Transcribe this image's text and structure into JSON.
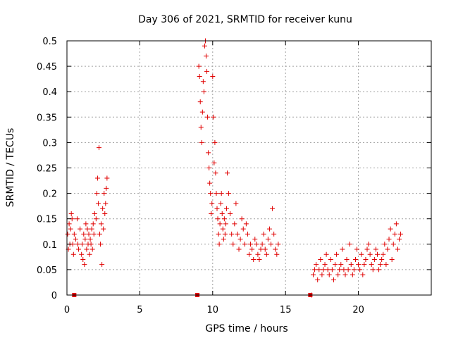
{
  "chart_data": {
    "type": "scatter",
    "title": "Day 306 of 2021, SRMTID for receiver kunu",
    "xlabel": "GPS time / hours",
    "ylabel": "SRMTID / TECUs",
    "xlim": [
      0,
      25
    ],
    "ylim": [
      0,
      0.5
    ],
    "xticks": [
      0,
      5,
      10,
      15,
      20
    ],
    "xtick_labels": [
      "0",
      "5",
      "10",
      "15",
      "20"
    ],
    "yticks": [
      0,
      0.05,
      0.1,
      0.15,
      0.2,
      0.25,
      0.3,
      0.35,
      0.4,
      0.45,
      0.5
    ],
    "ytick_labels": [
      "0",
      "0.05",
      "0.1",
      "0.15",
      "0.2",
      "0.25",
      "0.3",
      "0.35",
      "0.4",
      "0.45",
      "0.5"
    ],
    "grid": true,
    "marker": "plus",
    "color": "#e00000",
    "series": [
      {
        "name": "SRMTID",
        "x": [
          0.05,
          0.1,
          0.15,
          0.2,
          0.25,
          0.3,
          0.35,
          0.4,
          0.45,
          0.5,
          0.6,
          0.7,
          0.75,
          0.8,
          0.9,
          1.0,
          1.05,
          1.1,
          1.15,
          1.2,
          1.25,
          1.3,
          1.35,
          1.4,
          1.45,
          1.5,
          1.55,
          1.6,
          1.65,
          1.7,
          1.75,
          1.8,
          1.85,
          1.9,
          2.0,
          2.05,
          2.1,
          2.15,
          2.2,
          2.25,
          2.3,
          2.35,
          2.4,
          2.45,
          2.5,
          2.55,
          2.6,
          2.65,
          2.7,
          2.75,
          9.05,
          9.1,
          9.15,
          9.2,
          9.25,
          9.3,
          9.35,
          9.4,
          9.45,
          9.5,
          9.55,
          9.6,
          9.65,
          9.7,
          9.75,
          9.8,
          9.85,
          9.9,
          9.95,
          10.0,
          10.05,
          10.1,
          10.15,
          10.2,
          10.25,
          10.3,
          10.35,
          10.4,
          10.45,
          10.5,
          10.55,
          10.6,
          10.65,
          10.7,
          10.75,
          10.8,
          10.85,
          10.9,
          10.95,
          11.0,
          11.1,
          11.2,
          11.3,
          11.4,
          11.5,
          11.6,
          11.7,
          11.8,
          11.9,
          12.0,
          12.1,
          12.2,
          12.3,
          12.4,
          12.5,
          12.6,
          12.7,
          12.8,
          12.9,
          13.0,
          13.1,
          13.2,
          13.3,
          13.4,
          13.5,
          13.6,
          13.7,
          13.8,
          13.9,
          14.0,
          14.1,
          14.2,
          14.3,
          14.4,
          14.5,
          16.8,
          16.9,
          17.0,
          17.1,
          17.2,
          17.3,
          17.4,
          17.5,
          17.6,
          17.7,
          17.8,
          17.9,
          18.0,
          18.1,
          18.2,
          18.3,
          18.4,
          18.5,
          18.6,
          18.7,
          18.8,
          18.9,
          19.0,
          19.1,
          19.2,
          19.3,
          19.4,
          19.5,
          19.6,
          19.7,
          19.8,
          19.9,
          20.0,
          20.1,
          20.2,
          20.3,
          20.4,
          20.5,
          20.6,
          20.7,
          20.8,
          20.9,
          21.0,
          21.1,
          21.2,
          21.3,
          21.4,
          21.5,
          21.6,
          21.7,
          21.8,
          21.9,
          22.0,
          22.1,
          22.2,
          22.3,
          22.4,
          22.5,
          22.6,
          22.7,
          22.8,
          22.9
        ],
        "y": [
          0.12,
          0.09,
          0.14,
          0.1,
          0.13,
          0.16,
          0.15,
          0.1,
          0.08,
          0.12,
          0.11,
          0.15,
          0.1,
          0.09,
          0.13,
          0.08,
          0.1,
          0.07,
          0.12,
          0.06,
          0.11,
          0.14,
          0.09,
          0.13,
          0.1,
          0.12,
          0.08,
          0.11,
          0.1,
          0.13,
          0.09,
          0.14,
          0.12,
          0.16,
          0.15,
          0.2,
          0.23,
          0.18,
          0.29,
          0.12,
          0.1,
          0.14,
          0.06,
          0.17,
          0.13,
          0.2,
          0.16,
          0.18,
          0.21,
          0.23,
          0.45,
          0.43,
          0.38,
          0.33,
          0.3,
          0.36,
          0.42,
          0.4,
          0.49,
          0.5,
          0.47,
          0.44,
          0.35,
          0.28,
          0.25,
          0.22,
          0.2,
          0.16,
          0.18,
          0.43,
          0.35,
          0.26,
          0.3,
          0.24,
          0.2,
          0.17,
          0.15,
          0.12,
          0.1,
          0.14,
          0.18,
          0.2,
          0.16,
          0.13,
          0.11,
          0.15,
          0.12,
          0.14,
          0.17,
          0.24,
          0.2,
          0.16,
          0.12,
          0.1,
          0.14,
          0.18,
          0.12,
          0.09,
          0.11,
          0.15,
          0.13,
          0.1,
          0.14,
          0.12,
          0.08,
          0.1,
          0.09,
          0.07,
          0.11,
          0.1,
          0.08,
          0.07,
          0.09,
          0.1,
          0.12,
          0.09,
          0.08,
          0.11,
          0.13,
          0.1,
          0.17,
          0.12,
          0.09,
          0.08,
          0.1,
          0.0,
          0.04,
          0.05,
          0.06,
          0.03,
          0.05,
          0.07,
          0.04,
          0.05,
          0.06,
          0.08,
          0.05,
          0.04,
          0.07,
          0.05,
          0.03,
          0.06,
          0.08,
          0.04,
          0.05,
          0.06,
          0.09,
          0.05,
          0.04,
          0.07,
          0.05,
          0.1,
          0.06,
          0.04,
          0.05,
          0.07,
          0.09,
          0.06,
          0.05,
          0.08,
          0.04,
          0.06,
          0.07,
          0.09,
          0.1,
          0.08,
          0.06,
          0.05,
          0.07,
          0.09,
          0.08,
          0.05,
          0.06,
          0.07,
          0.08,
          0.1,
          0.06,
          0.09,
          0.11,
          0.13,
          0.07,
          0.1,
          0.12,
          0.14,
          0.09,
          0.11,
          0.12
        ]
      }
    ],
    "zero_markers_x": [
      0.5,
      8.95,
      16.7
    ]
  }
}
